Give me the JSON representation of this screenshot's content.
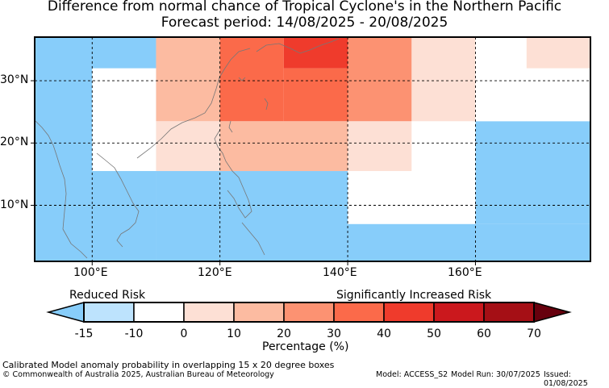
{
  "title_line1": "Difference from normal chance of Tropical Cyclone's in the Northern Pacific",
  "title_line2": "Forecast period: 14/08/2025 - 20/08/2025",
  "map": {
    "lon_range": [
      91,
      178
    ],
    "lat_range": [
      1,
      37
    ],
    "lon_ticks": [
      "100°E",
      "120°E",
      "140°E",
      "160°E"
    ],
    "lat_ticks": [
      "30°N",
      "20°N",
      "10°N"
    ],
    "grid_style": "dashed",
    "cells": [
      {
        "lon": [
          91,
          110
        ],
        "lat": [
          1,
          37
        ],
        "value": -15
      },
      {
        "lon": [
          110,
          120
        ],
        "lat": [
          1,
          15.5
        ],
        "value": -15
      },
      {
        "lon": [
          120,
          140
        ],
        "lat": [
          1,
          15.5
        ],
        "value": -15
      },
      {
        "lon": [
          140,
          178
        ],
        "lat": [
          1,
          7
        ],
        "value": -15
      },
      {
        "lon": [
          160,
          178
        ],
        "lat": [
          7,
          23.5
        ],
        "value": -15
      },
      {
        "lon": [
          100,
          110
        ],
        "lat": [
          15.5,
          32
        ],
        "value": -10
      },
      {
        "lon": [
          140,
          160
        ],
        "lat": [
          7,
          15.5
        ],
        "value": -10
      },
      {
        "lon": [
          150,
          160
        ],
        "lat": [
          15.5,
          23.5
        ],
        "value": -10
      },
      {
        "lon": [
          160,
          168
        ],
        "lat": [
          23.5,
          37
        ],
        "value": -10
      },
      {
        "lon": [
          168,
          178
        ],
        "lat": [
          23.5,
          32
        ],
        "value": -10
      },
      {
        "lon": [
          110,
          120
        ],
        "lat": [
          15.5,
          23.5
        ],
        "value": 0
      },
      {
        "lon": [
          140,
          150
        ],
        "lat": [
          15.5,
          23.5
        ],
        "value": 0
      },
      {
        "lon": [
          150,
          160
        ],
        "lat": [
          23.5,
          37
        ],
        "value": 0
      },
      {
        "lon": [
          168,
          178
        ],
        "lat": [
          32,
          37
        ],
        "value": 0
      },
      {
        "lon": [
          110,
          120
        ],
        "lat": [
          23.5,
          37
        ],
        "value": 10
      },
      {
        "lon": [
          120,
          140
        ],
        "lat": [
          15.5,
          23.5
        ],
        "value": 10
      },
      {
        "lon": [
          140,
          150
        ],
        "lat": [
          23.5,
          37
        ],
        "value": 20
      },
      {
        "lon": [
          120,
          130
        ],
        "lat": [
          23.5,
          37
        ],
        "value": 30
      },
      {
        "lon": [
          130,
          140
        ],
        "lat": [
          23.5,
          32
        ],
        "value": 30
      },
      {
        "lon": [
          130,
          140
        ],
        "lat": [
          32,
          37
        ],
        "value": 40
      }
    ]
  },
  "legend": {
    "reduced": "Reduced Risk",
    "increased": "Significantly Increased Risk",
    "xlabel": "Percentage (%)",
    "tick_labels": [
      "-15",
      "-10",
      "0",
      "10",
      "20",
      "30",
      "40",
      "50",
      "60",
      "70"
    ],
    "bins": [
      {
        "from": -15,
        "to": -10,
        "color": "#bde3fd"
      },
      {
        "from": -10,
        "to": 0,
        "color": "#ffffff"
      },
      {
        "from": 0,
        "to": 10,
        "color": "#fde0d5"
      },
      {
        "from": 10,
        "to": 20,
        "color": "#fcbba1"
      },
      {
        "from": 20,
        "to": 30,
        "color": "#fc9272"
      },
      {
        "from": 30,
        "to": 40,
        "color": "#fb6a4a"
      },
      {
        "from": 40,
        "to": 50,
        "color": "#ef3b2c"
      },
      {
        "from": 50,
        "to": 60,
        "color": "#cb181d"
      },
      {
        "from": 60,
        "to": 70,
        "color": "#a50f15"
      }
    ],
    "under_color": "#87cdfa",
    "over_color": "#67000d"
  },
  "footer": {
    "note": "Calibrated Model anomaly probability in overlapping 15 x 20 degree boxes",
    "copyright": "© Commonwealth of Australia 2025, Australian Bureau of Meteorology",
    "model": "Model: ACCESS_S2",
    "run": "Model Run: 30/07/2025",
    "issued": "Issued: 01/08/2025"
  }
}
